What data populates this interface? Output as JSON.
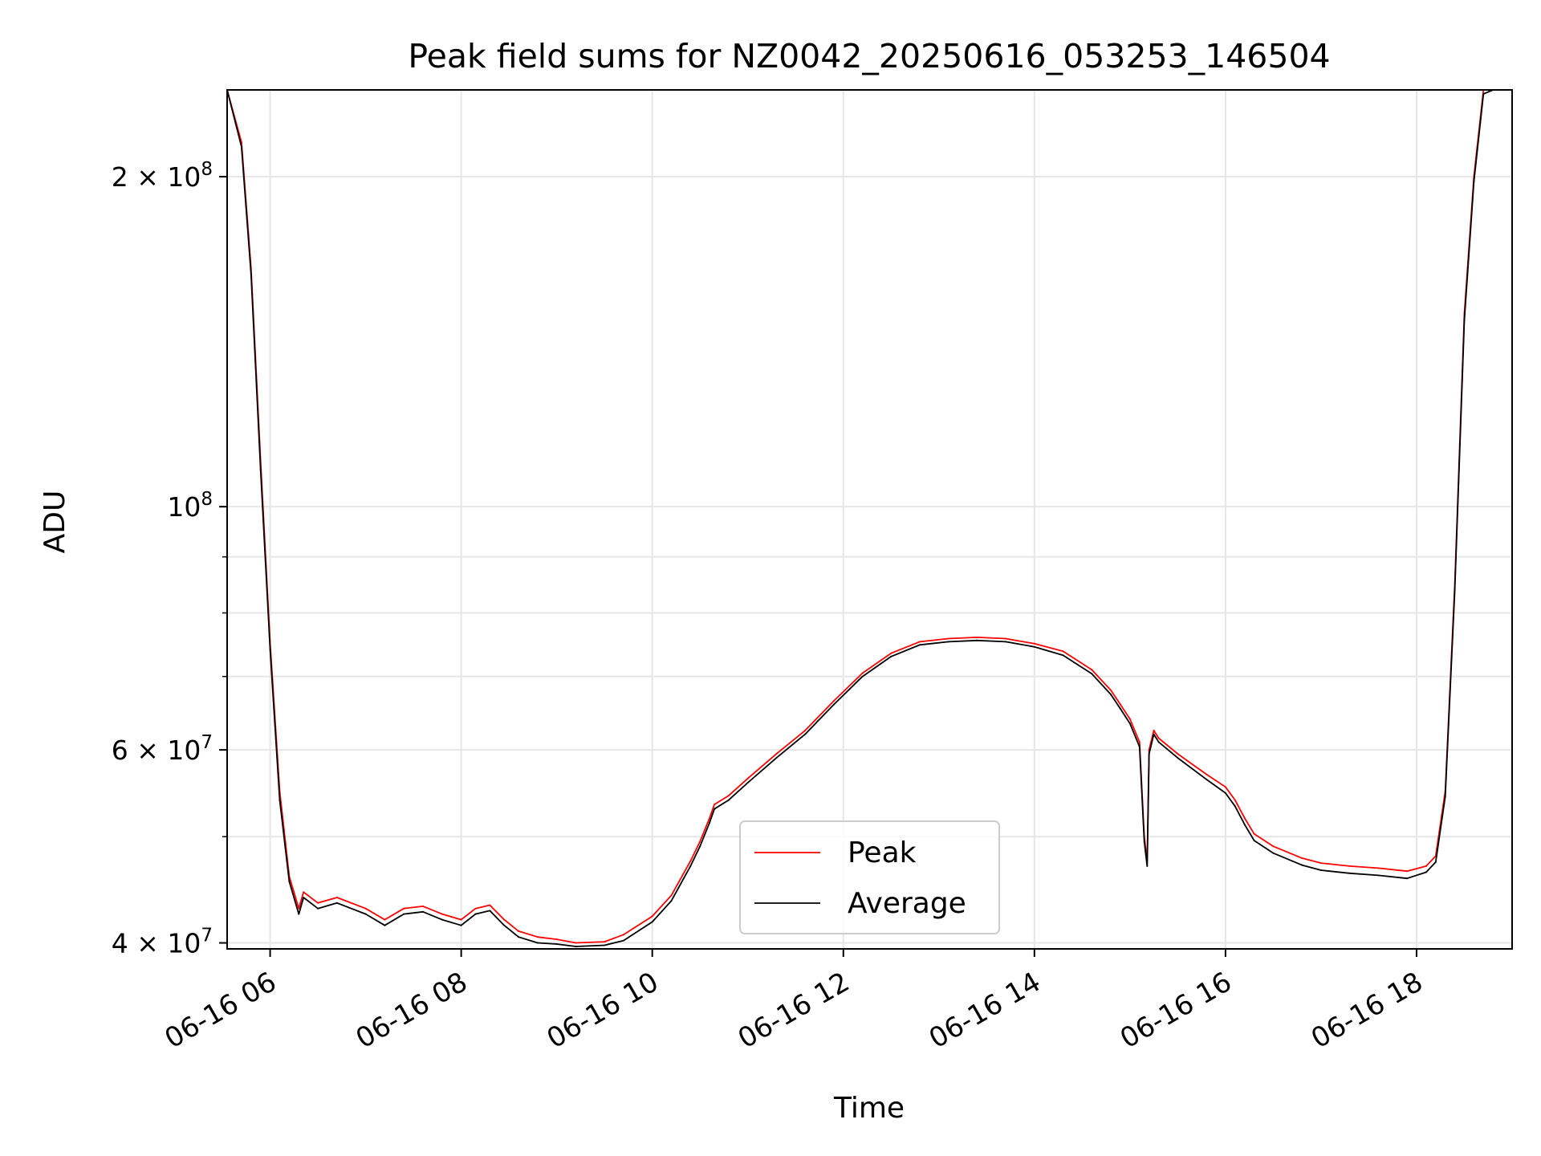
{
  "chart_data": {
    "type": "line",
    "title": "Peak field sums for NZ0042_20250616_053253_146504",
    "xlabel": "Time",
    "ylabel": "ADU",
    "x_unit": "hour of 06-16",
    "xlim": [
      5.55,
      19.0
    ],
    "ylim": [
      39500000,
      240000000
    ],
    "yscale": "log",
    "grid": true,
    "legend_position": "lower center",
    "x_ticks": [
      {
        "value": 6,
        "label": "06-16 06"
      },
      {
        "value": 8,
        "label": "06-16 08"
      },
      {
        "value": 10,
        "label": "06-16 10"
      },
      {
        "value": 12,
        "label": "06-16 12"
      },
      {
        "value": 14,
        "label": "06-16 14"
      },
      {
        "value": 16,
        "label": "06-16 16"
      },
      {
        "value": 18,
        "label": "06-16 18"
      }
    ],
    "y_ticks": [
      {
        "value": 40000000,
        "label": "4 × 10",
        "exp": "7"
      },
      {
        "value": 60000000,
        "label": "6 × 10",
        "exp": "7"
      },
      {
        "value": 100000000,
        "label": "10",
        "exp": "8"
      },
      {
        "value": 200000000,
        "label": "2 × 10",
        "exp": "8"
      }
    ],
    "y_minor_ticks": [
      50000000,
      70000000,
      80000000,
      90000000
    ],
    "series": [
      {
        "name": "Peak",
        "color": "#ff0000",
        "x": [
          5.55,
          5.7,
          5.8,
          5.9,
          6.0,
          6.1,
          6.2,
          6.3,
          6.35,
          6.5,
          6.7,
          7.0,
          7.2,
          7.4,
          7.6,
          7.8,
          8.0,
          8.15,
          8.3,
          8.45,
          8.6,
          8.8,
          9.0,
          9.2,
          9.5,
          9.7,
          10.0,
          10.2,
          10.4,
          10.5,
          10.6,
          10.65,
          10.8,
          11.0,
          11.3,
          11.6,
          11.9,
          12.2,
          12.5,
          12.8,
          13.1,
          13.4,
          13.7,
          14.0,
          14.3,
          14.6,
          14.8,
          14.9,
          15.0,
          15.1,
          15.15,
          15.18,
          15.2,
          15.25,
          15.3,
          15.5,
          15.8,
          16.0,
          16.1,
          16.2,
          16.3,
          16.5,
          16.8,
          17.0,
          17.3,
          17.6,
          17.9,
          18.1,
          18.2,
          18.3,
          18.4,
          18.5,
          18.6,
          18.7,
          18.8
        ],
        "y": [
          240000000,
          215000000,
          165000000,
          110000000,
          75000000,
          55000000,
          46000000,
          43000000,
          44500000,
          43500000,
          44000000,
          43000000,
          42000000,
          43000000,
          43200000,
          42500000,
          42000000,
          43000000,
          43300000,
          42000000,
          41000000,
          40500000,
          40300000,
          40000000,
          40100000,
          40700000,
          42300000,
          44200000,
          47500000,
          49500000,
          52000000,
          53500000,
          54500000,
          56500000,
          59500000,
          62500000,
          66500000,
          70500000,
          73500000,
          75300000,
          75800000,
          76000000,
          75800000,
          75000000,
          73800000,
          71000000,
          68000000,
          66000000,
          64000000,
          61000000,
          50000000,
          47500000,
          60000000,
          62500000,
          61500000,
          59500000,
          57000000,
          55500000,
          54000000,
          52000000,
          50300000,
          49000000,
          47800000,
          47300000,
          47000000,
          46800000,
          46500000,
          47000000,
          48000000,
          55000000,
          85000000,
          150000000,
          200000000,
          240000000,
          240000000
        ]
      },
      {
        "name": "Average",
        "color": "#000000",
        "x": [
          5.55,
          5.7,
          5.8,
          5.9,
          6.0,
          6.1,
          6.2,
          6.3,
          6.35,
          6.5,
          6.7,
          7.0,
          7.2,
          7.4,
          7.6,
          7.8,
          8.0,
          8.15,
          8.3,
          8.45,
          8.6,
          8.8,
          9.0,
          9.2,
          9.5,
          9.7,
          10.0,
          10.2,
          10.4,
          10.5,
          10.6,
          10.65,
          10.8,
          11.0,
          11.3,
          11.6,
          11.9,
          12.2,
          12.5,
          12.8,
          13.1,
          13.4,
          13.7,
          14.0,
          14.3,
          14.6,
          14.8,
          14.9,
          15.0,
          15.1,
          15.15,
          15.18,
          15.2,
          15.25,
          15.3,
          15.5,
          15.8,
          16.0,
          16.1,
          16.2,
          16.3,
          16.5,
          16.8,
          17.0,
          17.3,
          17.6,
          17.9,
          18.1,
          18.2,
          18.3,
          18.4,
          18.5,
          18.6,
          18.7,
          18.8
        ],
        "y": [
          240000000,
          213000000,
          163000000,
          108000000,
          74000000,
          54000000,
          45500000,
          42500000,
          44000000,
          43000000,
          43500000,
          42500000,
          41500000,
          42500000,
          42700000,
          42000000,
          41500000,
          42500000,
          42800000,
          41500000,
          40500000,
          40000000,
          39900000,
          39700000,
          39800000,
          40200000,
          41800000,
          43700000,
          47000000,
          49000000,
          51500000,
          53000000,
          54000000,
          56000000,
          59000000,
          62000000,
          66000000,
          70000000,
          73000000,
          74800000,
          75300000,
          75500000,
          75300000,
          74500000,
          73200000,
          70400000,
          67400000,
          65400000,
          63400000,
          60400000,
          49500000,
          47000000,
          59500000,
          62000000,
          61000000,
          59000000,
          56400000,
          54800000,
          53300000,
          51300000,
          49600000,
          48300000,
          47100000,
          46600000,
          46300000,
          46100000,
          45800000,
          46400000,
          47400000,
          54400000,
          84000000,
          148000000,
          198000000,
          238000000,
          240000000
        ]
      }
    ]
  }
}
